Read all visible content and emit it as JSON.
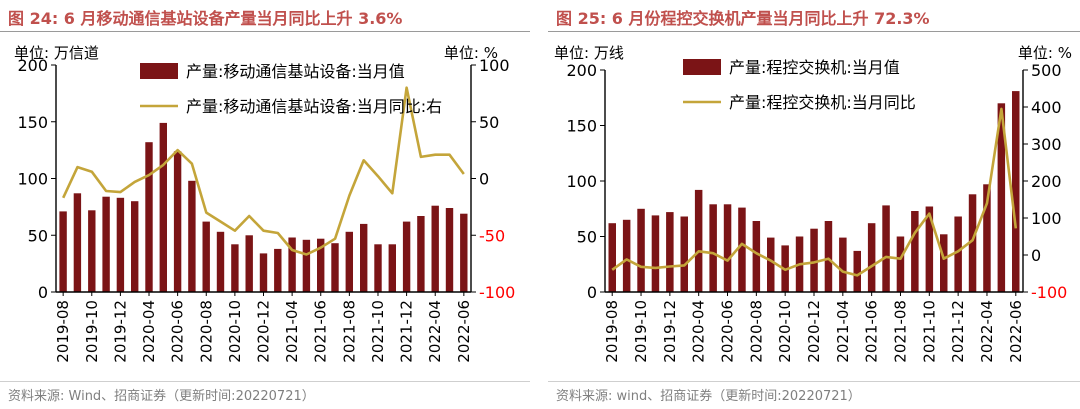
{
  "colors": {
    "bar": "#7b1416",
    "line": "#c4a53a",
    "title": "#c0504d",
    "axis": "#000000",
    "source": "#7f7f7f"
  },
  "chart_data": [
    {
      "type": "bar",
      "figure_title": "图 24:  6 月移动通信基站设备产量当月同比上升 3.6%",
      "left_unit": "单位:  万信道",
      "right_unit": "单位:  %",
      "source": "资料来源:  Wind、招商证券（更新时间:20220721）",
      "legend": [
        "产量:移动通信基站设备:当月值",
        "产量:移动通信基站设备:当月同比:右"
      ],
      "y_left": {
        "min": 0,
        "max": 200,
        "ticks": [
          "0",
          "50",
          "100",
          "150",
          "200"
        ]
      },
      "y_right": {
        "min": -100,
        "max": 100,
        "ticks": [
          "-100",
          "-50",
          "0",
          "50",
          "100"
        ]
      },
      "x_ticks": [
        "2019-08",
        "2019-10",
        "2019-12",
        "2020-04",
        "2020-06",
        "2020-08",
        "2020-10",
        "2020-12",
        "2021-04",
        "2021-06",
        "2021-08",
        "2021-10",
        "2021-12",
        "2022-04",
        "2022-06"
      ],
      "series": [
        {
          "name": "产量:移动通信基站设备:当月值",
          "type": "bar",
          "axis": "left",
          "values": [
            71,
            87,
            72,
            84,
            83,
            80,
            132,
            149,
            124,
            98,
            62,
            53,
            42,
            50,
            34,
            38,
            48,
            46,
            47,
            43,
            53,
            60,
            42,
            42,
            62,
            67,
            76,
            74,
            69
          ]
        },
        {
          "name": "产量:移动通信基站设备:当月同比:右",
          "type": "line",
          "axis": "right",
          "values": [
            -17,
            10,
            6,
            -11,
            -12,
            -3,
            3,
            12,
            25,
            13,
            -30,
            -38,
            -46,
            -33,
            -46,
            -48,
            -63,
            -67,
            -61,
            -53,
            -15,
            16,
            2,
            -13,
            80,
            19,
            21,
            21,
            4
          ]
        }
      ]
    },
    {
      "type": "bar",
      "figure_title": "图 25:  6 月份程控交换机产量当月同比上升 72.3%",
      "left_unit": "单位:  万线",
      "right_unit": "单位:  %",
      "source": "资料来源:  wind、招商证券（更新时间:20220721）",
      "legend": [
        "产量:程控交换机:当月值",
        "产量:程控交换机:当月同比"
      ],
      "y_left": {
        "min": 0,
        "max": 200,
        "ticks": [
          "0",
          "50",
          "100",
          "150",
          "200"
        ]
      },
      "y_right": {
        "min": -100,
        "max": 500,
        "ticks": [
          "-100",
          "0",
          "100",
          "200",
          "300",
          "400",
          "500"
        ]
      },
      "x_ticks": [
        "2019-08",
        "2019-10",
        "2019-12",
        "2020-04",
        "2020-06",
        "2020-08",
        "2020-10",
        "2020-12",
        "2021-04",
        "2021-06",
        "2021-08",
        "2021-10",
        "2021-12",
        "2022-04",
        "2022-06"
      ],
      "series": [
        {
          "name": "产量:程控交换机:当月值",
          "type": "bar",
          "axis": "left",
          "values": [
            62,
            65,
            75,
            69,
            72,
            68,
            92,
            79,
            79,
            76,
            64,
            49,
            42,
            50,
            57,
            64,
            49,
            37,
            62,
            78,
            50,
            73,
            77,
            52,
            68,
            88,
            97,
            170,
            181
          ]
        },
        {
          "name": "产量:程控交换机:当月同比",
          "type": "line",
          "axis": "right",
          "values": [
            -40,
            -12,
            -32,
            -35,
            -31,
            -28,
            10,
            5,
            -15,
            30,
            5,
            -15,
            -40,
            -25,
            -20,
            -10,
            -45,
            -55,
            -30,
            -5,
            -10,
            60,
            112,
            -10,
            10,
            40,
            140,
            395,
            72
          ]
        }
      ]
    }
  ]
}
